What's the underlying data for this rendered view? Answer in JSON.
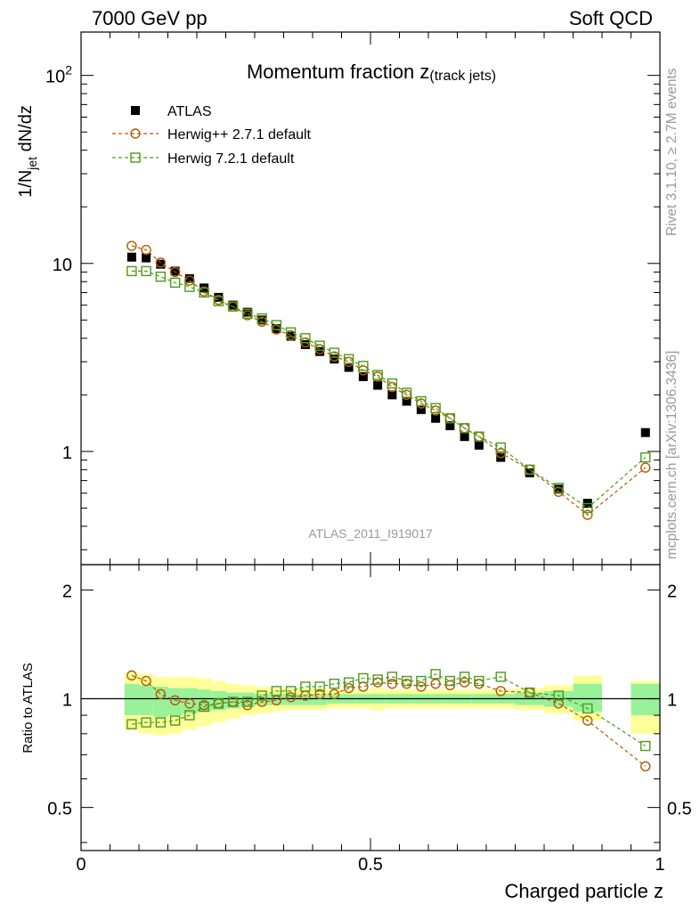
{
  "header": {
    "left": "7000 GeV pp",
    "right": "Soft QCD"
  },
  "side_labels": {
    "rivet": "Rivet 3.1.10, ≥ 2.7M events",
    "mcplots": "mcplots.cern.ch [arXiv:1306.3436]"
  },
  "chart_data": [
    {
      "type": "scatter",
      "panel": "main",
      "title_main": "Momentum fraction z",
      "title_sub": "(track jets)",
      "ylabel": "1/N",
      "ylabel_sub": "jet",
      "ylabel_tail": " dN/dz",
      "watermark": "ATLAS_2011_I919017",
      "yscale": "log",
      "xlim": [
        0,
        1.0
      ],
      "ylim": [
        0.25,
        170
      ],
      "yticks": [
        {
          "value": 100,
          "base": "10",
          "exp": "2"
        },
        {
          "value": 10,
          "label": "10"
        },
        {
          "value": 1,
          "label": "1"
        }
      ],
      "legend_position": "top-left",
      "x": [
        0.0875,
        0.1125,
        0.1375,
        0.1625,
        0.1875,
        0.2125,
        0.2375,
        0.2625,
        0.2875,
        0.3125,
        0.3375,
        0.3625,
        0.3875,
        0.4125,
        0.4375,
        0.4625,
        0.4875,
        0.5125,
        0.5375,
        0.5625,
        0.5875,
        0.6125,
        0.6375,
        0.6625,
        0.6875,
        0.725,
        0.775,
        0.825,
        0.875,
        0.975
      ],
      "series": [
        {
          "name": "ATLAS",
          "marker": "filled-square",
          "color": "#000000",
          "line": false,
          "values": [
            10.8,
            10.7,
            9.9,
            9.1,
            8.3,
            7.4,
            6.6,
            6.0,
            5.5,
            5.0,
            4.5,
            4.1,
            3.7,
            3.4,
            3.1,
            2.8,
            2.5,
            2.25,
            2.0,
            1.85,
            1.67,
            1.5,
            1.37,
            1.2,
            1.08,
            0.93,
            0.77,
            0.63,
            0.53,
            1.26
          ]
        },
        {
          "name": "Herwig++ 2.7.1 default",
          "marker": "open-circle",
          "color": "#b35900",
          "line": true,
          "values": [
            12.4,
            11.8,
            10.1,
            9.0,
            8.1,
            7.1,
            6.4,
            5.9,
            5.3,
            4.9,
            4.45,
            4.15,
            3.8,
            3.5,
            3.2,
            3.0,
            2.7,
            2.5,
            2.2,
            2.0,
            1.8,
            1.65,
            1.5,
            1.33,
            1.2,
            0.98,
            0.8,
            0.61,
            0.46,
            0.82
          ]
        },
        {
          "name": "Herwig 7.2.1 default",
          "marker": "open-square",
          "color": "#4c9a1a",
          "line": true,
          "values": [
            9.1,
            9.1,
            8.5,
            7.9,
            7.5,
            7.0,
            6.3,
            5.9,
            5.4,
            5.1,
            4.7,
            4.3,
            4.0,
            3.65,
            3.35,
            3.1,
            2.85,
            2.55,
            2.3,
            2.05,
            1.85,
            1.7,
            1.5,
            1.33,
            1.2,
            1.05,
            0.8,
            0.64,
            0.5,
            0.93
          ]
        }
      ]
    },
    {
      "type": "scatter",
      "panel": "ratio",
      "ylabel": "Ratio to ATLAS",
      "xlabel": "Charged particle z",
      "xlim": [
        0,
        1.0
      ],
      "ylim": [
        0.38,
        2.35
      ],
      "yscale": "log",
      "reference": 1.0,
      "xticks": [
        {
          "value": 0,
          "label": "0"
        },
        {
          "value": 0.5,
          "label": "0.5"
        },
        {
          "value": 1.0,
          "label": "1"
        }
      ],
      "yticks": [
        {
          "value": 2,
          "label": "2"
        },
        {
          "value": 1,
          "label": "1"
        },
        {
          "value": 0.5,
          "label": "0.5"
        }
      ],
      "bands": [
        {
          "x0": 0.075,
          "x1": 0.1,
          "outer": [
            0.82,
            1.18
          ],
          "inner": [
            0.9,
            1.1
          ]
        },
        {
          "x0": 0.1,
          "x1": 0.125,
          "outer": [
            0.8,
            1.17
          ],
          "inner": [
            0.9,
            1.09
          ]
        },
        {
          "x0": 0.125,
          "x1": 0.15,
          "outer": [
            0.79,
            1.15
          ],
          "inner": [
            0.89,
            1.08
          ]
        },
        {
          "x0": 0.15,
          "x1": 0.175,
          "outer": [
            0.8,
            1.15
          ],
          "inner": [
            0.9,
            1.07
          ]
        },
        {
          "x0": 0.175,
          "x1": 0.2,
          "outer": [
            0.82,
            1.15
          ],
          "inner": [
            0.91,
            1.07
          ]
        },
        {
          "x0": 0.2,
          "x1": 0.225,
          "outer": [
            0.84,
            1.14
          ],
          "inner": [
            0.92,
            1.06
          ]
        },
        {
          "x0": 0.225,
          "x1": 0.25,
          "outer": [
            0.86,
            1.12
          ],
          "inner": [
            0.93,
            1.05
          ]
        },
        {
          "x0": 0.25,
          "x1": 0.275,
          "outer": [
            0.88,
            1.1
          ],
          "inner": [
            0.94,
            1.04
          ]
        },
        {
          "x0": 0.275,
          "x1": 0.3,
          "outer": [
            0.9,
            1.09
          ],
          "inner": [
            0.95,
            1.04
          ]
        },
        {
          "x0": 0.3,
          "x1": 0.325,
          "outer": [
            0.91,
            1.08
          ],
          "inner": [
            0.96,
            1.03
          ]
        },
        {
          "x0": 0.325,
          "x1": 0.35,
          "outer": [
            0.92,
            1.07
          ],
          "inner": [
            0.96,
            1.03
          ]
        },
        {
          "x0": 0.35,
          "x1": 0.375,
          "outer": [
            0.93,
            1.07
          ],
          "inner": [
            0.96,
            1.03
          ]
        },
        {
          "x0": 0.375,
          "x1": 0.4,
          "outer": [
            0.93,
            1.07
          ],
          "inner": [
            0.96,
            1.03
          ]
        },
        {
          "x0": 0.4,
          "x1": 0.425,
          "outer": [
            0.93,
            1.07
          ],
          "inner": [
            0.96,
            1.03
          ]
        },
        {
          "x0": 0.425,
          "x1": 0.45,
          "outer": [
            0.94,
            1.06
          ],
          "inner": [
            0.97,
            1.03
          ]
        },
        {
          "x0": 0.45,
          "x1": 0.475,
          "outer": [
            0.94,
            1.06
          ],
          "inner": [
            0.97,
            1.03
          ]
        },
        {
          "x0": 0.475,
          "x1": 0.5,
          "outer": [
            0.94,
            1.06
          ],
          "inner": [
            0.97,
            1.03
          ]
        },
        {
          "x0": 0.5,
          "x1": 0.525,
          "outer": [
            0.93,
            1.07
          ],
          "inner": [
            0.97,
            1.03
          ]
        },
        {
          "x0": 0.525,
          "x1": 0.55,
          "outer": [
            0.94,
            1.06
          ],
          "inner": [
            0.97,
            1.03
          ]
        },
        {
          "x0": 0.55,
          "x1": 0.575,
          "outer": [
            0.94,
            1.06
          ],
          "inner": [
            0.97,
            1.03
          ]
        },
        {
          "x0": 0.575,
          "x1": 0.6,
          "outer": [
            0.94,
            1.06
          ],
          "inner": [
            0.97,
            1.03
          ]
        },
        {
          "x0": 0.6,
          "x1": 0.625,
          "outer": [
            0.94,
            1.06
          ],
          "inner": [
            0.97,
            1.03
          ]
        },
        {
          "x0": 0.625,
          "x1": 0.65,
          "outer": [
            0.94,
            1.06
          ],
          "inner": [
            0.97,
            1.03
          ]
        },
        {
          "x0": 0.65,
          "x1": 0.675,
          "outer": [
            0.94,
            1.06
          ],
          "inner": [
            0.97,
            1.03
          ]
        },
        {
          "x0": 0.675,
          "x1": 0.7,
          "outer": [
            0.94,
            1.06
          ],
          "inner": [
            0.97,
            1.03
          ]
        },
        {
          "x0": 0.7,
          "x1": 0.75,
          "outer": [
            0.94,
            1.06
          ],
          "inner": [
            0.97,
            1.03
          ]
        },
        {
          "x0": 0.75,
          "x1": 0.8,
          "outer": [
            0.93,
            1.07
          ],
          "inner": [
            0.96,
            1.04
          ]
        },
        {
          "x0": 0.8,
          "x1": 0.85,
          "outer": [
            0.91,
            1.09
          ],
          "inner": [
            0.95,
            1.05
          ]
        },
        {
          "x0": 0.85,
          "x1": 0.9,
          "outer": [
            0.87,
            1.16
          ],
          "inner": [
            0.92,
            1.1
          ]
        },
        {
          "x0": 0.95,
          "x1": 1.0,
          "outer": [
            0.8,
            1.12
          ],
          "inner": [
            0.9,
            1.1
          ]
        }
      ],
      "series": [
        {
          "name": "Herwig++ 2.7.1 default",
          "marker": "open-circle",
          "color": "#b35900",
          "values": [
            1.16,
            1.12,
            1.03,
            0.99,
            0.97,
            0.96,
            0.97,
            0.98,
            0.96,
            0.98,
            0.99,
            1.01,
            1.02,
            1.03,
            1.03,
            1.07,
            1.08,
            1.11,
            1.1,
            1.1,
            1.08,
            1.1,
            1.09,
            1.11,
            1.1,
            1.05,
            1.04,
            0.97,
            0.87,
            0.65
          ]
        },
        {
          "name": "Herwig 7.2.1 default",
          "marker": "open-square",
          "color": "#4c9a1a",
          "values": [
            0.85,
            0.86,
            0.86,
            0.87,
            0.9,
            0.95,
            0.97,
            0.98,
            0.98,
            1.02,
            1.05,
            1.05,
            1.08,
            1.08,
            1.1,
            1.11,
            1.14,
            1.13,
            1.15,
            1.12,
            1.12,
            1.17,
            1.12,
            1.15,
            1.12,
            1.15,
            1.04,
            1.02,
            0.94,
            0.74
          ]
        }
      ]
    }
  ]
}
